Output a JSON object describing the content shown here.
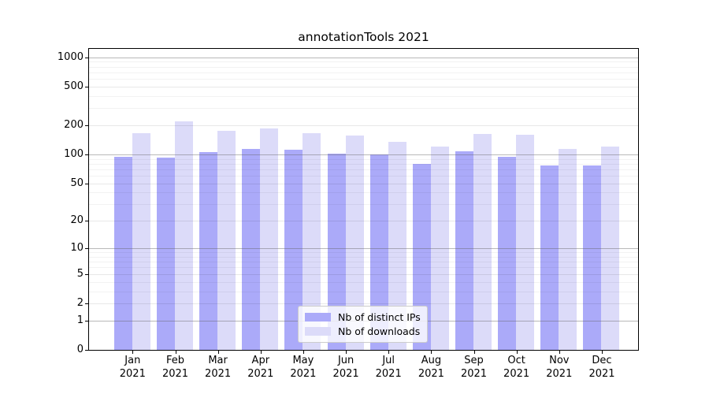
{
  "figure": {
    "title": "annotationTools 2021"
  },
  "legend": {
    "items": [
      {
        "label": "Nb of distinct IPs"
      },
      {
        "label": "Nb of downloads"
      }
    ]
  },
  "chart_data": {
    "type": "bar",
    "title": "annotationTools 2021",
    "categories": [
      "Jan 2021",
      "Feb 2021",
      "Mar 2021",
      "Apr 2021",
      "May 2021",
      "Jun 2021",
      "Jul 2021",
      "Aug 2021",
      "Sep 2021",
      "Oct 2021",
      "Nov 2021",
      "Dec 2021"
    ],
    "x_months": [
      "Jan",
      "Feb",
      "Mar",
      "Apr",
      "May",
      "Jun",
      "Jul",
      "Aug",
      "Sep",
      "Oct",
      "Nov",
      "Dec"
    ],
    "x_year": "2021",
    "series": [
      {
        "name": "Nb of distinct IPs",
        "color": "#abaaf9",
        "values": [
          94,
          93,
          106,
          114,
          112,
          101,
          100,
          80,
          107,
          95,
          77,
          77
        ]
      },
      {
        "name": "Nb of downloads",
        "color": "#dcdbf9",
        "values": [
          167,
          220,
          175,
          185,
          165,
          158,
          135,
          120,
          162,
          160,
          115,
          121
        ]
      }
    ],
    "y_axis": {
      "scale": "symlog(ln(1+v))",
      "max": 1000,
      "tick_values": [
        1000,
        500,
        200,
        100,
        50,
        20,
        10,
        5,
        2,
        1,
        0
      ],
      "major_gridlines": [
        1,
        10,
        100,
        1000
      ],
      "mid_gridlines": [
        2,
        5,
        20,
        50,
        200,
        500
      ],
      "minor_gridlines": [
        3,
        4,
        6,
        7,
        8,
        9,
        30,
        40,
        60,
        70,
        80,
        90,
        300,
        400,
        600,
        700,
        800,
        900
      ]
    },
    "grid": true,
    "legend_position": "lower center"
  },
  "grid_colors": {
    "major": "rgba(100,100,100,0.45)",
    "mid": "rgba(0,0,0,0.09)",
    "minor": "rgba(0,0,0,0.05)"
  }
}
